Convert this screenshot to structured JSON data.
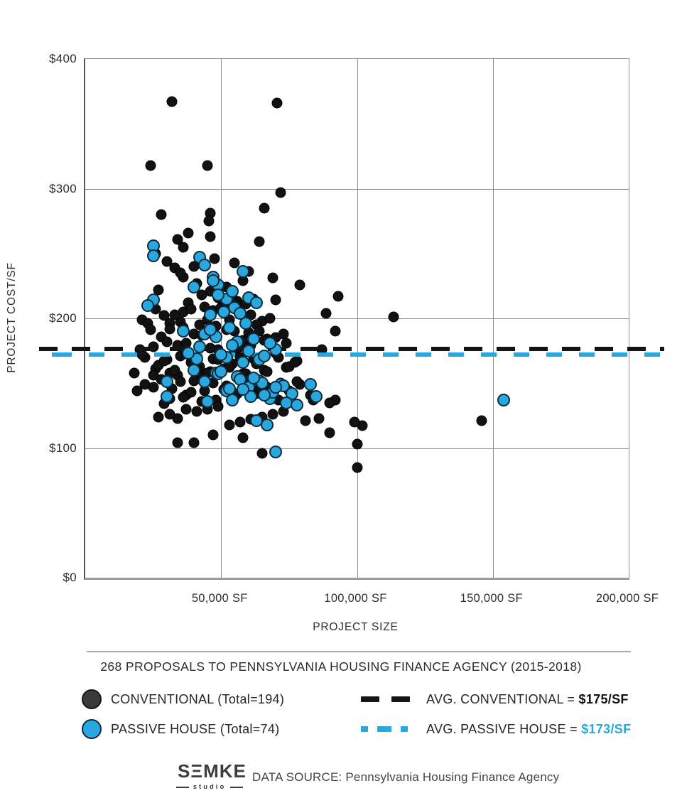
{
  "chart_data": {
    "type": "scatter",
    "title": "268 PROPOSALS TO PENNSYLVANIA HOUSING FINANCE AGENCY (2015-2018)",
    "xlabel": "PROJECT SIZE",
    "ylabel": "PROJECT COST/SF",
    "xlim": [
      0,
      200000
    ],
    "ylim": [
      0,
      400
    ],
    "grid": true,
    "x_unit": "SF (point x values stored in thousands of SF)",
    "y_unit": "$ per SF",
    "x_ticks": [
      {
        "value": 50000,
        "label": "50,000 SF"
      },
      {
        "value": 100000,
        "label": "100,000 SF"
      },
      {
        "value": 150000,
        "label": "150,000 SF"
      },
      {
        "value": 200000,
        "label": "200,000 SF"
      }
    ],
    "y_ticks": [
      {
        "value": 0,
        "label": "$0"
      },
      {
        "value": 100,
        "label": "$100"
      },
      {
        "value": 200,
        "label": "$200"
      },
      {
        "value": 300,
        "label": "$300"
      },
      {
        "value": 400,
        "label": "$400"
      }
    ],
    "series": [
      {
        "name": "CONVENTIONAL",
        "legend_label": "CONVENTIONAL (Total=194)",
        "total": 194,
        "color": "#121212",
        "points": [
          [
            32,
            367
          ],
          [
            70.5,
            366
          ],
          [
            24,
            318
          ],
          [
            45,
            318
          ],
          [
            72,
            297
          ],
          [
            66,
            285
          ],
          [
            28,
            280
          ],
          [
            46,
            281
          ],
          [
            45.5,
            275
          ],
          [
            38,
            266
          ],
          [
            46,
            263
          ],
          [
            64,
            259
          ],
          [
            34,
            261
          ],
          [
            36,
            255
          ],
          [
            26,
            250
          ],
          [
            33,
            239
          ],
          [
            47.5,
            246
          ],
          [
            41,
            227
          ],
          [
            55,
            243
          ],
          [
            46,
            221
          ],
          [
            60,
            236
          ],
          [
            36,
            232
          ],
          [
            52,
            224
          ],
          [
            79,
            226
          ],
          [
            30,
            244
          ],
          [
            43,
            218
          ],
          [
            58,
            229
          ],
          [
            35,
            235
          ],
          [
            49,
            216
          ],
          [
            93,
            217
          ],
          [
            27,
            222
          ],
          [
            62,
            215
          ],
          [
            40,
            240
          ],
          [
            56,
            213
          ],
          [
            69,
            231
          ],
          [
            21,
            199
          ],
          [
            26,
            207
          ],
          [
            113.5,
            201
          ],
          [
            88.5,
            204
          ],
          [
            31,
            196
          ],
          [
            44,
            209
          ],
          [
            53,
            199
          ],
          [
            38,
            212
          ],
          [
            61,
            203
          ],
          [
            47,
            206
          ],
          [
            35,
            197
          ],
          [
            57,
            210
          ],
          [
            29,
            202
          ],
          [
            42,
            195
          ],
          [
            50,
            208
          ],
          [
            65,
            198
          ],
          [
            36,
            205
          ],
          [
            48,
            194
          ],
          [
            59,
            211
          ],
          [
            68,
            200
          ],
          [
            23,
            196
          ],
          [
            33,
            203
          ],
          [
            54,
            213
          ],
          [
            45,
            199
          ],
          [
            39,
            207
          ],
          [
            63,
            195
          ],
          [
            51,
            209
          ],
          [
            70,
            214
          ],
          [
            92,
            190
          ],
          [
            74,
            181
          ],
          [
            87,
            176
          ],
          [
            20,
            176
          ],
          [
            28,
            186
          ],
          [
            34,
            179
          ],
          [
            40,
            188
          ],
          [
            46,
            177
          ],
          [
            52,
            191
          ],
          [
            58,
            183
          ],
          [
            64,
            190
          ],
          [
            70,
            185
          ],
          [
            25,
            178
          ],
          [
            31,
            192
          ],
          [
            37,
            181
          ],
          [
            43,
            187
          ],
          [
            49,
            176
          ],
          [
            55,
            190
          ],
          [
            61,
            179
          ],
          [
            67,
            184
          ],
          [
            73,
            188
          ],
          [
            30,
            182
          ],
          [
            36,
            193
          ],
          [
            42,
            177
          ],
          [
            48,
            186
          ],
          [
            54,
            180
          ],
          [
            60,
            189
          ],
          [
            66,
            183
          ],
          [
            24,
            191
          ],
          [
            57,
            178
          ],
          [
            18,
            158
          ],
          [
            22,
            170
          ],
          [
            26,
            161
          ],
          [
            30,
            168
          ],
          [
            34,
            156
          ],
          [
            38,
            172
          ],
          [
            42,
            163
          ],
          [
            46,
            159
          ],
          [
            50,
            171
          ],
          [
            54,
            165
          ],
          [
            58,
            157
          ],
          [
            62,
            169
          ],
          [
            66,
            160
          ],
          [
            70,
            173
          ],
          [
            74,
            162
          ],
          [
            78,
            167
          ],
          [
            27,
            164
          ],
          [
            31,
            158
          ],
          [
            35,
            171
          ],
          [
            39,
            166
          ],
          [
            43,
            155
          ],
          [
            47,
            169
          ],
          [
            51,
            161
          ],
          [
            55,
            174
          ],
          [
            59,
            157
          ],
          [
            63,
            165
          ],
          [
            67,
            159
          ],
          [
            71,
            170
          ],
          [
            75,
            163
          ],
          [
            77,
            166
          ],
          [
            21,
            172
          ],
          [
            25,
            156
          ],
          [
            29,
            167
          ],
          [
            33,
            160
          ],
          [
            37,
            173
          ],
          [
            41,
            164
          ],
          [
            45,
            158
          ],
          [
            49,
            168
          ],
          [
            53,
            162
          ],
          [
            57,
            170
          ],
          [
            22,
            149
          ],
          [
            19,
            144
          ],
          [
            29,
            134
          ],
          [
            37,
            141
          ],
          [
            25,
            147
          ],
          [
            31,
            138
          ],
          [
            35,
            151
          ],
          [
            39,
            143
          ],
          [
            43,
            136
          ],
          [
            47,
            150
          ],
          [
            51,
            145
          ],
          [
            55,
            139
          ],
          [
            59,
            152
          ],
          [
            63,
            142
          ],
          [
            67,
            147
          ],
          [
            71,
            137
          ],
          [
            75,
            144
          ],
          [
            79,
            149
          ],
          [
            83,
            141
          ],
          [
            28,
            153
          ],
          [
            32,
            146
          ],
          [
            36,
            139
          ],
          [
            40,
            152
          ],
          [
            44,
            144
          ],
          [
            48,
            137
          ],
          [
            52,
            148
          ],
          [
            56,
            142
          ],
          [
            60,
            153
          ],
          [
            64,
            146
          ],
          [
            68,
            140
          ],
          [
            72,
            150
          ],
          [
            78,
            151
          ],
          [
            84,
            137
          ],
          [
            92,
            137
          ],
          [
            34,
            123
          ],
          [
            37,
            130
          ],
          [
            27,
            124
          ],
          [
            31,
            126
          ],
          [
            41,
            128
          ],
          [
            45,
            130
          ],
          [
            49,
            132
          ],
          [
            53,
            118
          ],
          [
            57,
            120
          ],
          [
            61,
            122
          ],
          [
            65,
            124
          ],
          [
            69,
            126
          ],
          [
            73,
            128
          ],
          [
            81,
            121
          ],
          [
            86,
            123
          ],
          [
            90,
            135
          ],
          [
            102,
            117
          ],
          [
            146,
            121
          ],
          [
            99,
            120
          ],
          [
            40,
            104
          ],
          [
            34,
            104
          ],
          [
            65,
            96
          ],
          [
            100,
            85
          ],
          [
            100,
            103
          ],
          [
            47,
            110
          ],
          [
            58,
            108
          ],
          [
            90,
            112
          ]
        ]
      },
      {
        "name": "PASSIVE HOUSE",
        "legend_label": "PASSIVE HOUSE (Total=74)",
        "total": 74,
        "color": "#29A8E0",
        "points": [
          [
            25,
            256
          ],
          [
            25,
            248
          ],
          [
            42,
            247
          ],
          [
            49,
            226
          ],
          [
            44,
            241
          ],
          [
            52,
            215
          ],
          [
            47,
            232
          ],
          [
            55,
            208
          ],
          [
            40,
            224
          ],
          [
            58,
            236
          ],
          [
            25,
            214
          ],
          [
            23,
            210
          ],
          [
            49,
            218
          ],
          [
            47,
            229
          ],
          [
            51,
            205
          ],
          [
            54,
            221
          ],
          [
            57,
            204
          ],
          [
            60,
            216
          ],
          [
            63,
            212
          ],
          [
            46,
            203
          ],
          [
            36,
            190
          ],
          [
            42,
            178
          ],
          [
            48,
            186
          ],
          [
            52,
            170
          ],
          [
            56,
            182
          ],
          [
            60,
            175
          ],
          [
            64,
            168
          ],
          [
            44,
            188
          ],
          [
            50,
            172
          ],
          [
            54,
            179
          ],
          [
            58,
            166
          ],
          [
            62,
            184
          ],
          [
            66,
            171
          ],
          [
            70,
            176
          ],
          [
            46,
            191
          ],
          [
            53,
            193
          ],
          [
            59,
            196
          ],
          [
            41,
            169
          ],
          [
            38,
            173
          ],
          [
            68,
            181
          ],
          [
            40,
            160
          ],
          [
            44,
            151
          ],
          [
            48,
            158
          ],
          [
            52,
            144
          ],
          [
            56,
            155
          ],
          [
            60,
            147
          ],
          [
            64,
            152
          ],
          [
            68,
            138
          ],
          [
            72,
            149
          ],
          [
            76,
            142
          ],
          [
            45,
            136
          ],
          [
            49,
            157
          ],
          [
            53,
            146
          ],
          [
            57,
            153
          ],
          [
            61,
            140
          ],
          [
            65,
            150
          ],
          [
            69,
            143
          ],
          [
            73,
            148
          ],
          [
            83,
            149
          ],
          [
            85,
            140
          ],
          [
            30,
            151
          ],
          [
            30,
            140
          ],
          [
            50,
            159
          ],
          [
            54,
            137
          ],
          [
            58,
            145
          ],
          [
            62,
            154
          ],
          [
            66,
            141
          ],
          [
            70,
            147
          ],
          [
            74,
            135
          ],
          [
            78,
            133
          ],
          [
            70,
            97
          ],
          [
            154,
            137
          ],
          [
            63,
            121
          ],
          [
            67,
            118
          ]
        ]
      }
    ],
    "avg_lines": [
      {
        "name": "AVG. CONVENTIONAL",
        "label_prefix": "AVG. CONVENTIONAL = ",
        "value_label": "$175/SF",
        "value": 175,
        "color": "#141414"
      },
      {
        "name": "AVG. PASSIVE HOUSE",
        "label_prefix": "AVG. PASSIVE HOUSE = ",
        "value_label": "$173/SF",
        "value": 173,
        "color": "#29A8E0"
      }
    ]
  },
  "footer": {
    "logo_word": "SΞMKE",
    "logo_sub": "studio",
    "source": "DATA SOURCE: Pennsylvania Housing Finance Agency"
  }
}
